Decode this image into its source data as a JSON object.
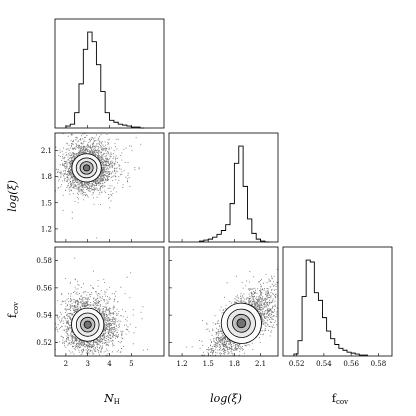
{
  "chart_data": {
    "type": "corner",
    "parameters": [
      {
        "key": "NH",
        "label_main": "N",
        "label_sub": "H",
        "italic": true,
        "range": [
          1.5,
          6.5
        ],
        "ticks": [
          2,
          3,
          4,
          5
        ],
        "tick_labels": [
          "2",
          "3",
          "4",
          "5"
        ]
      },
      {
        "key": "xi",
        "label_main": "log(ξ)",
        "label_sub": "",
        "italic": true,
        "range": [
          1.05,
          2.3
        ],
        "ticks": [
          1.2,
          1.5,
          1.8,
          2.1
        ],
        "tick_labels": [
          "1.2",
          "1.5",
          "1.8",
          "2.1"
        ]
      },
      {
        "key": "fcov",
        "label_main": "f",
        "label_sub": "cov",
        "italic": false,
        "range": [
          0.51,
          0.59
        ],
        "ticks": [
          0.52,
          0.54,
          0.56,
          0.58
        ],
        "tick_labels": [
          "0.52",
          "0.54",
          "0.56",
          "0.58"
        ]
      }
    ],
    "histograms": [
      {
        "param": "NH",
        "bin_edges": [
          2.0,
          2.2,
          2.4,
          2.6,
          2.8,
          3.0,
          3.2,
          3.4,
          3.6,
          3.8,
          4.0,
          4.2,
          4.4,
          4.6,
          4.8,
          5.0,
          5.2,
          5.4,
          5.6
        ],
        "counts": [
          2,
          4,
          16,
          46,
          82,
          100,
          90,
          66,
          38,
          16,
          8,
          6,
          4,
          3,
          2,
          1,
          1,
          0
        ]
      },
      {
        "param": "xi",
        "bin_edges": [
          1.4,
          1.45,
          1.5,
          1.55,
          1.6,
          1.65,
          1.7,
          1.75,
          1.8,
          1.85,
          1.9,
          1.95,
          2.0,
          2.05,
          2.1,
          2.15,
          2.2
        ],
        "counts": [
          1,
          2,
          3,
          5,
          8,
          12,
          18,
          40,
          82,
          100,
          58,
          24,
          9,
          3,
          1,
          0
        ]
      },
      {
        "param": "fcov",
        "bin_edges": [
          0.518,
          0.521,
          0.524,
          0.527,
          0.53,
          0.533,
          0.536,
          0.539,
          0.542,
          0.545,
          0.548,
          0.551,
          0.554,
          0.557,
          0.56,
          0.563,
          0.566,
          0.569,
          0.572
        ],
        "counts": [
          2,
          16,
          62,
          100,
          98,
          66,
          58,
          40,
          26,
          18,
          12,
          8,
          6,
          4,
          3,
          2,
          1,
          1
        ]
      }
    ],
    "joint": [
      {
        "x": "NH",
        "y": "xi",
        "center": [
          2.95,
          1.9
        ],
        "sd": [
          0.5,
          0.12
        ],
        "corr": 0.05
      },
      {
        "x": "NH",
        "y": "fcov",
        "center": [
          3.0,
          0.533
        ],
        "sd": [
          0.55,
          0.009
        ],
        "corr": 0.0
      },
      {
        "x": "xi",
        "y": "fcov",
        "center": [
          1.88,
          0.534
        ],
        "sd": [
          0.17,
          0.011
        ],
        "corr": 0.7
      }
    ],
    "grid": false
  }
}
